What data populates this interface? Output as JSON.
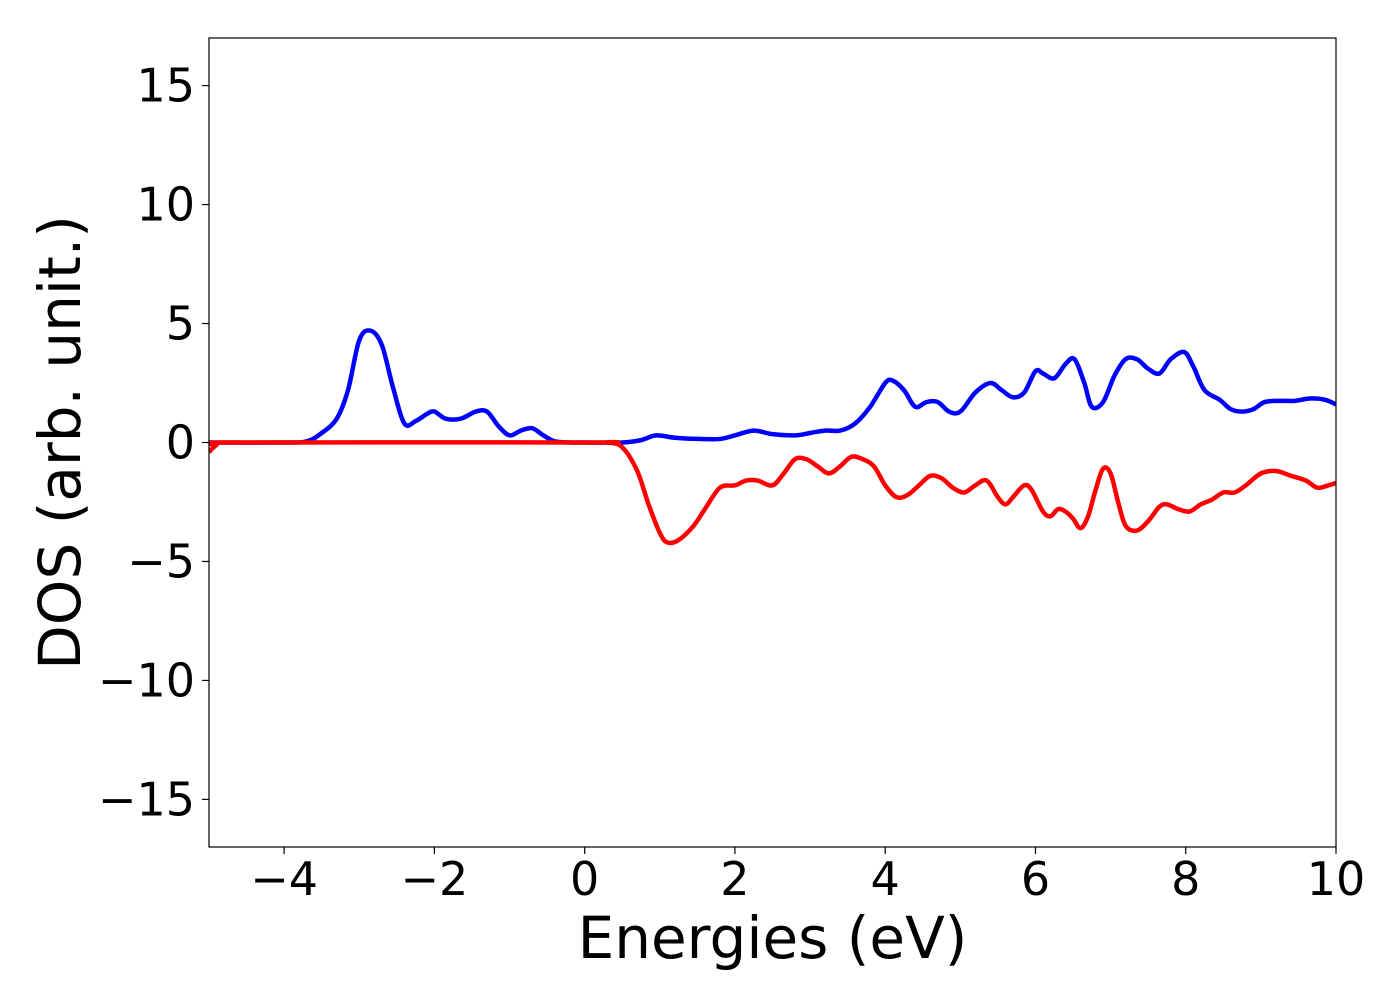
{
  "chart_data": {
    "type": "line",
    "xlabel": "Energies (eV)",
    "ylabel": "DOS (arb. unit.)",
    "xlim": [
      -5,
      10
    ],
    "ylim": [
      -17,
      17
    ],
    "xticks": [
      -4,
      -2,
      0,
      2,
      4,
      6,
      8,
      10
    ],
    "xtick_labels": [
      "−4",
      "−2",
      "0",
      "2",
      "4",
      "6",
      "8",
      "10"
    ],
    "yticks": [
      15,
      10,
      5,
      0,
      -5,
      -10,
      -15
    ],
    "ytick_labels": [
      "15",
      "10",
      "5",
      "0",
      "−5",
      "−10",
      "−15"
    ],
    "grid": false,
    "series": [
      {
        "color": "#0000ff",
        "x": [
          -5.0,
          -4.0,
          -3.7,
          -3.5,
          -3.3,
          -3.15,
          -3.0,
          -2.85,
          -2.7,
          -2.55,
          -2.4,
          -2.25,
          -2.1,
          -2.0,
          -1.85,
          -1.65,
          -1.45,
          -1.3,
          -1.15,
          -1.0,
          -0.85,
          -0.7,
          -0.55,
          -0.4,
          -0.2,
          0.0,
          0.5,
          0.75,
          0.95,
          1.2,
          1.5,
          1.8,
          2.0,
          2.25,
          2.5,
          2.8,
          3.0,
          3.2,
          3.4,
          3.6,
          3.8,
          4.0,
          4.1,
          4.25,
          4.4,
          4.55,
          4.7,
          4.85,
          5.0,
          5.2,
          5.4,
          5.55,
          5.7,
          5.85,
          6.0,
          6.1,
          6.25,
          6.4,
          6.52,
          6.65,
          6.75,
          6.9,
          7.05,
          7.2,
          7.35,
          7.5,
          7.65,
          7.8,
          7.98,
          8.1,
          8.25,
          8.45,
          8.6,
          8.75,
          8.9,
          9.05,
          9.25,
          9.45,
          9.65,
          9.85,
          10.0
        ],
        "y": [
          0.0,
          0.0,
          0.05,
          0.4,
          1.0,
          2.2,
          4.3,
          4.7,
          4.1,
          2.3,
          0.8,
          0.9,
          1.2,
          1.3,
          1.0,
          1.0,
          1.3,
          1.3,
          0.7,
          0.3,
          0.5,
          0.6,
          0.3,
          0.05,
          0.0,
          0.0,
          0.0,
          0.1,
          0.3,
          0.2,
          0.15,
          0.15,
          0.3,
          0.5,
          0.35,
          0.3,
          0.4,
          0.5,
          0.5,
          0.8,
          1.5,
          2.5,
          2.6,
          2.2,
          1.5,
          1.7,
          1.7,
          1.3,
          1.3,
          2.1,
          2.5,
          2.2,
          1.9,
          2.1,
          3.0,
          2.9,
          2.7,
          3.3,
          3.5,
          2.5,
          1.5,
          1.7,
          2.8,
          3.5,
          3.5,
          3.1,
          2.9,
          3.5,
          3.8,
          3.2,
          2.2,
          1.8,
          1.4,
          1.3,
          1.4,
          1.7,
          1.75,
          1.75,
          1.85,
          1.8,
          1.6
        ]
      },
      {
        "color": "#ff0000",
        "x": [
          -5.0,
          -4.9,
          -4.8,
          0.0,
          0.3,
          0.5,
          0.7,
          0.85,
          1.0,
          1.1,
          1.25,
          1.45,
          1.6,
          1.8,
          2.0,
          2.15,
          2.3,
          2.5,
          2.65,
          2.8,
          2.95,
          3.1,
          3.25,
          3.4,
          3.55,
          3.7,
          3.85,
          4.0,
          4.15,
          4.3,
          4.45,
          4.6,
          4.75,
          4.9,
          5.05,
          5.2,
          5.35,
          5.5,
          5.6,
          5.7,
          5.85,
          5.95,
          6.1,
          6.2,
          6.3,
          6.4,
          6.5,
          6.6,
          6.7,
          6.8,
          6.9,
          7.0,
          7.1,
          7.2,
          7.35,
          7.5,
          7.65,
          7.75,
          7.9,
          8.05,
          8.2,
          8.35,
          8.5,
          8.65,
          8.8,
          9.0,
          9.2,
          9.4,
          9.6,
          9.75,
          9.9,
          10.0
        ],
        "y": [
          -0.4,
          -0.1,
          0.0,
          0.0,
          0.0,
          -0.2,
          -1.2,
          -2.6,
          -3.8,
          -4.2,
          -4.1,
          -3.5,
          -2.8,
          -1.9,
          -1.8,
          -1.6,
          -1.6,
          -1.8,
          -1.3,
          -0.7,
          -0.7,
          -1.0,
          -1.3,
          -1.0,
          -0.6,
          -0.7,
          -1.0,
          -1.8,
          -2.3,
          -2.2,
          -1.8,
          -1.4,
          -1.5,
          -1.9,
          -2.1,
          -1.8,
          -1.6,
          -2.3,
          -2.6,
          -2.3,
          -1.8,
          -2.0,
          -2.9,
          -3.1,
          -2.8,
          -2.9,
          -3.2,
          -3.6,
          -3.1,
          -2.0,
          -1.1,
          -1.3,
          -2.5,
          -3.5,
          -3.7,
          -3.3,
          -2.7,
          -2.6,
          -2.8,
          -2.9,
          -2.6,
          -2.4,
          -2.1,
          -2.1,
          -1.8,
          -1.3,
          -1.2,
          -1.4,
          -1.6,
          -1.9,
          -1.8,
          -1.7
        ]
      }
    ]
  }
}
